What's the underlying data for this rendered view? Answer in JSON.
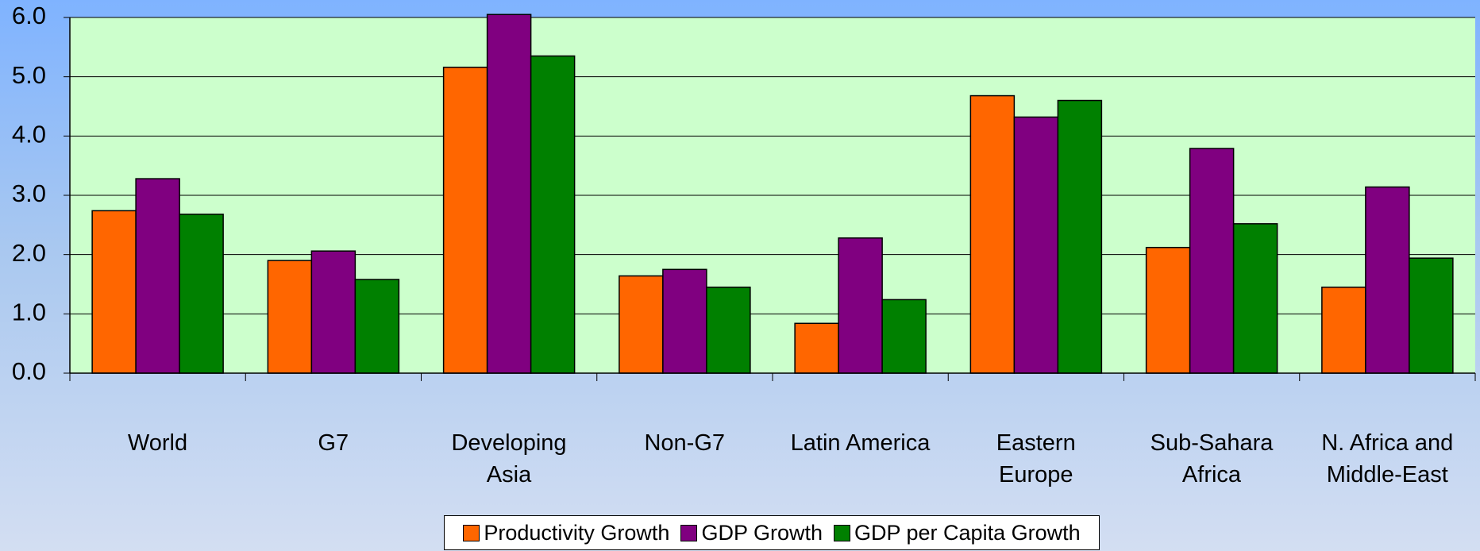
{
  "chart_data": {
    "type": "bar",
    "categories": [
      "World",
      "G7",
      "Developing\nAsia",
      "Non-G7",
      "Latin America",
      "Eastern\nEurope",
      "Sub-Sahara\nAfrica",
      "N. Africa and\nMiddle-East"
    ],
    "series": [
      {
        "name": "Productivity Growth",
        "color": "#ff6600",
        "values": [
          2.74,
          1.9,
          5.16,
          1.64,
          0.84,
          4.68,
          2.12,
          1.45
        ]
      },
      {
        "name": "GDP Growth",
        "color": "#800080",
        "values": [
          3.28,
          2.06,
          6.05,
          1.75,
          2.28,
          4.32,
          3.79,
          3.14
        ]
      },
      {
        "name": "GDP per Capita Growth",
        "color": "#008000",
        "values": [
          2.68,
          1.58,
          5.35,
          1.45,
          1.24,
          4.6,
          2.52,
          1.94
        ]
      }
    ],
    "ylim": [
      0,
      6
    ],
    "yticks": [
      {
        "value": 0,
        "label": "0.0"
      },
      {
        "value": 1,
        "label": "1.0"
      },
      {
        "value": 2,
        "label": "2.0"
      },
      {
        "value": 3,
        "label": "3.0"
      },
      {
        "value": 4,
        "label": "4.0"
      },
      {
        "value": 5,
        "label": "5.0"
      },
      {
        "value": 6,
        "label": "6.0"
      }
    ],
    "grid": true,
    "plot_color": "#ccffcc",
    "legend": "bottom"
  }
}
